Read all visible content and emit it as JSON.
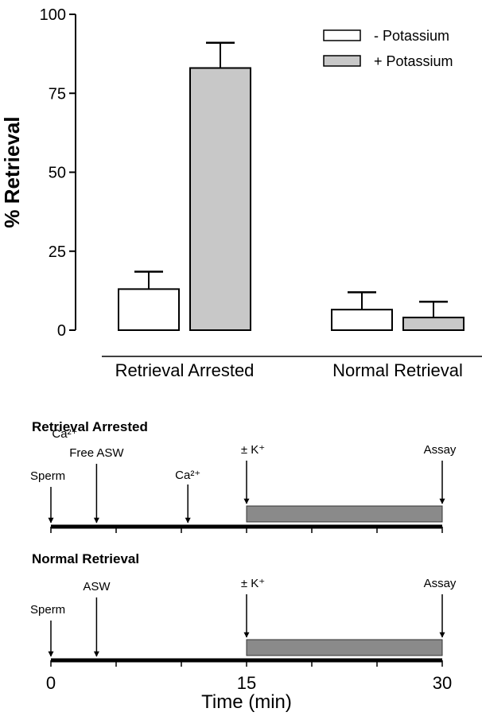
{
  "chart_data": {
    "type": "bar",
    "ylabel": "% Retrieval",
    "ylim": [
      0,
      100
    ],
    "yticks": [
      0,
      25,
      50,
      75,
      100
    ],
    "categories": [
      "Retrieval Arrested",
      "Normal Retrieval"
    ],
    "series": [
      {
        "name": "- Potassium",
        "values": [
          13,
          6.5
        ],
        "errors": [
          5.5,
          5.5
        ],
        "color": "#ffffff"
      },
      {
        "name": "+ Potassium",
        "values": [
          83,
          4
        ],
        "errors": [
          8,
          5
        ],
        "color": "#c8c8c8"
      }
    ],
    "legend": "top-right"
  },
  "timeline": {
    "xlabel": "Time (min)",
    "xlim": [
      0,
      30
    ],
    "xticks": [
      0,
      15,
      30
    ],
    "minor_ticks": [
      5,
      10,
      20,
      25
    ],
    "bar_color": "#8a8a8a",
    "panels": [
      {
        "title": "Retrieval Arrested",
        "incubation": [
          15,
          30
        ],
        "events": [
          {
            "time": 0,
            "label": "Sperm"
          },
          {
            "time": 3.5,
            "label": "Free ASW",
            "label_top": "Ca²⁺"
          },
          {
            "time": 10.5,
            "label": "Ca²⁺"
          },
          {
            "time": 15,
            "label": "± K⁺"
          },
          {
            "time": 30,
            "label": "Assay"
          }
        ]
      },
      {
        "title": "Normal Retrieval",
        "incubation": [
          15,
          30
        ],
        "events": [
          {
            "time": 0,
            "label": "Sperm"
          },
          {
            "time": 3.5,
            "label": "ASW"
          },
          {
            "time": 15,
            "label": "± K⁺"
          },
          {
            "time": 30,
            "label": "Assay"
          }
        ]
      }
    ]
  }
}
